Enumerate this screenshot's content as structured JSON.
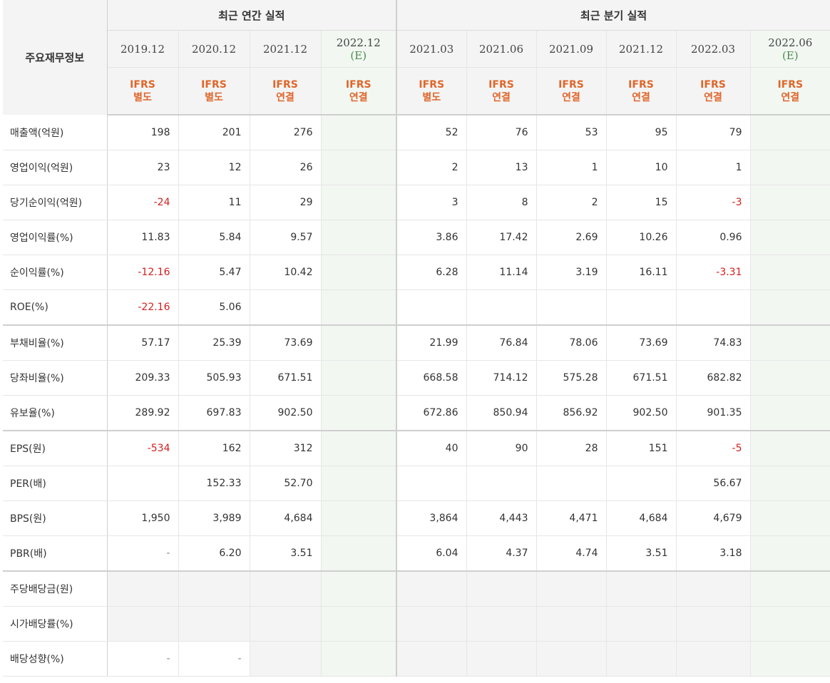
{
  "header": {
    "row_label": "주요재무정보",
    "annual_title": "최근 연간 실적",
    "quarter_title": "최근 분기 실적",
    "periods": [
      "2019.12",
      "2020.12",
      "2021.12",
      "2022.12",
      "2021.03",
      "2021.06",
      "2021.09",
      "2021.12",
      "2022.03",
      "2022.06"
    ],
    "estimate_mark": "(E)",
    "standards_top": [
      "IFRS",
      "IFRS",
      "IFRS",
      "IFRS",
      "IFRS",
      "IFRS",
      "IFRS",
      "IFRS",
      "IFRS",
      "IFRS"
    ],
    "standards_bottom": [
      "별도",
      "별도",
      "연결",
      "연결",
      "별도",
      "연결",
      "연결",
      "연결",
      "연결",
      "연결"
    ]
  },
  "rows": [
    {
      "label": "매출액(억원)",
      "values": [
        "198",
        "201",
        "276",
        "",
        "52",
        "76",
        "53",
        "95",
        "79",
        ""
      ]
    },
    {
      "label": "영업이익(억원)",
      "values": [
        "23",
        "12",
        "26",
        "",
        "2",
        "13",
        "1",
        "10",
        "1",
        ""
      ]
    },
    {
      "label": "당기순이익(억원)",
      "values": [
        "-24",
        "11",
        "29",
        "",
        "3",
        "8",
        "2",
        "15",
        "-3",
        ""
      ]
    },
    {
      "label": "영업이익률(%)",
      "values": [
        "11.83",
        "5.84",
        "9.57",
        "",
        "3.86",
        "17.42",
        "2.69",
        "10.26",
        "0.96",
        ""
      ]
    },
    {
      "label": "순이익률(%)",
      "values": [
        "-12.16",
        "5.47",
        "10.42",
        "",
        "6.28",
        "11.14",
        "3.19",
        "16.11",
        "-3.31",
        ""
      ]
    },
    {
      "label": "ROE(%)",
      "values": [
        "-22.16",
        "5.06",
        "",
        "",
        "",
        "",
        "",
        "",
        "",
        ""
      ]
    },
    {
      "label": "부채비율(%)",
      "values": [
        "57.17",
        "25.39",
        "73.69",
        "",
        "21.99",
        "76.84",
        "78.06",
        "73.69",
        "74.83",
        ""
      ]
    },
    {
      "label": "당좌비율(%)",
      "values": [
        "209.33",
        "505.93",
        "671.51",
        "",
        "668.58",
        "714.12",
        "575.28",
        "671.51",
        "682.82",
        ""
      ]
    },
    {
      "label": "유보율(%)",
      "values": [
        "289.92",
        "697.83",
        "902.50",
        "",
        "672.86",
        "850.94",
        "856.92",
        "902.50",
        "901.35",
        ""
      ]
    },
    {
      "label": "EPS(원)",
      "values": [
        "-534",
        "162",
        "312",
        "",
        "40",
        "90",
        "28",
        "151",
        "-5",
        ""
      ]
    },
    {
      "label": "PER(배)",
      "values": [
        "",
        "152.33",
        "52.70",
        "",
        "",
        "",
        "",
        "",
        "56.67",
        ""
      ]
    },
    {
      "label": "BPS(원)",
      "values": [
        "1,950",
        "3,989",
        "4,684",
        "",
        "3,864",
        "4,443",
        "4,471",
        "4,684",
        "4,679",
        ""
      ]
    },
    {
      "label": "PBR(배)",
      "values": [
        "-",
        "6.20",
        "3.51",
        "",
        "6.04",
        "4.37",
        "4.74",
        "3.51",
        "3.18",
        ""
      ]
    },
    {
      "label": "주당배당금(원)",
      "values": [
        "",
        "",
        "",
        "",
        "",
        "",
        "",
        "",
        "",
        ""
      ]
    },
    {
      "label": "시가배당률(%)",
      "values": [
        "",
        "",
        "",
        "",
        "",
        "",
        "",
        "",
        "",
        ""
      ]
    },
    {
      "label": "배당성향(%)",
      "values": [
        "-",
        "-",
        "",
        "",
        "",
        "",
        "",
        "",
        "",
        ""
      ]
    }
  ],
  "colors": {
    "negative": "#d21f1f",
    "standard": "#e0662a",
    "estimate": "#4a8a4a",
    "header_bg": "#f4f4f4",
    "estimate_bg": "#f2f7f2"
  }
}
